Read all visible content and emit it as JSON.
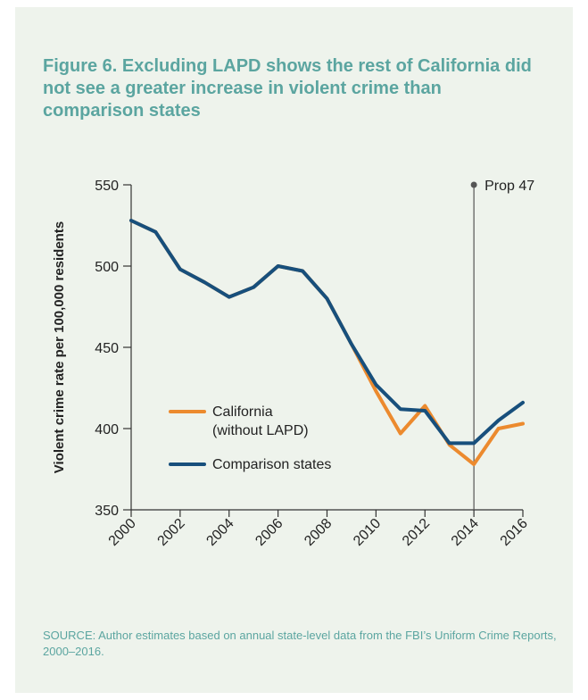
{
  "title": "Figure 6. Excluding LAPD shows the rest of California did not see a greater increase in violent crime than comparison states",
  "source": "SOURCE: Author estimates based on annual state-level data from the FBI’s Uniform Crime Reports, 2000–2016.",
  "colors": {
    "panel_background": "#eef3ec",
    "title_text": "#5ba5a0",
    "california": "#ec8a2e",
    "comparison": "#174f7c",
    "axis": "#333333",
    "annotation_line": "#555555"
  },
  "chart_data": {
    "type": "line",
    "title": "",
    "xlabel": "",
    "ylabel": "Violent crime rate per 100,000 residents",
    "xlim": [
      2000,
      2016
    ],
    "ylim": [
      350,
      550
    ],
    "x_ticks": [
      "2000",
      "2002",
      "2004",
      "2006",
      "2008",
      "2010",
      "2012",
      "2014",
      "2016"
    ],
    "y_ticks": [
      "350",
      "400",
      "450",
      "500",
      "550"
    ],
    "grid": false,
    "legend_position": "lower-center",
    "x": [
      2000,
      2001,
      2002,
      2003,
      2004,
      2005,
      2006,
      2007,
      2008,
      2009,
      2010,
      2011,
      2012,
      2013,
      2014,
      2015,
      2016
    ],
    "series": [
      {
        "name": "California\n(without LAPD)",
        "color": "#ec8a2e",
        "values": [
          528,
          521,
          498,
          490,
          481,
          487,
          500,
          497,
          480,
          452,
          423,
          397,
          414,
          390,
          378,
          400,
          403
        ]
      },
      {
        "name": "Comparison states",
        "color": "#174f7c",
        "values": [
          528,
          521,
          498,
          490,
          481,
          487,
          500,
          497,
          480,
          452,
          427,
          412,
          411,
          391,
          391,
          405,
          416
        ]
      }
    ],
    "annotations": [
      {
        "type": "vertical_line",
        "x": 2014,
        "label": "Prop 47"
      }
    ]
  }
}
